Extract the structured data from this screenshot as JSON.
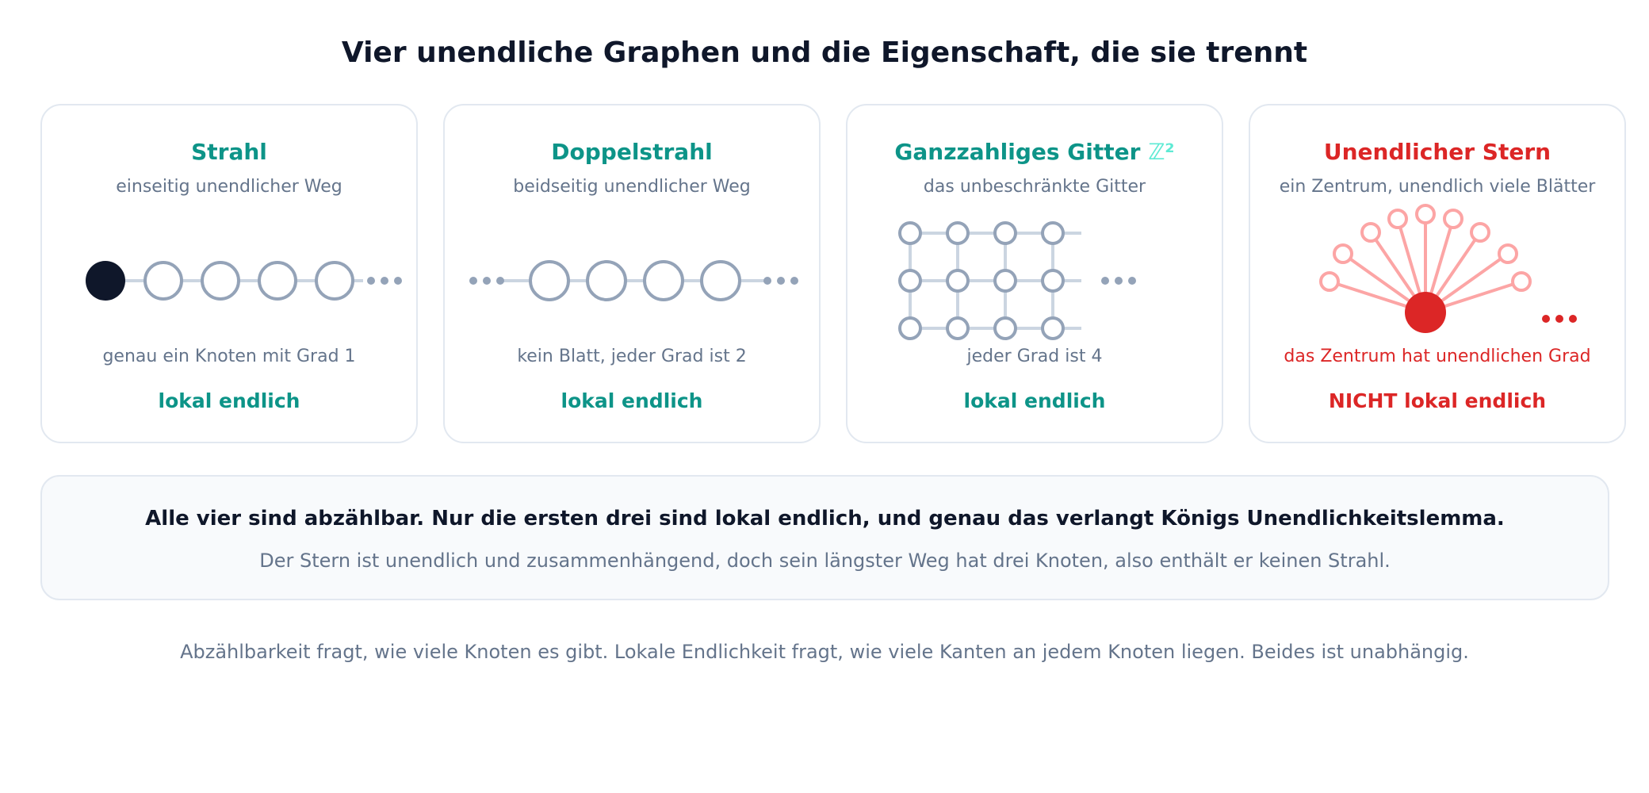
{
  "title": "Vier unendliche Graphen und die Eigenschaft, die sie trennt",
  "cards": [
    {
      "title": "Strahl",
      "subtitle": "einseitig unendlicher Weg",
      "property": "genau ein Knoten mit Grad 1",
      "verdict": "lokal endlich",
      "status": "locally-finite"
    },
    {
      "title": "Doppelstrahl",
      "subtitle": "beidseitig unendlicher Weg",
      "property": "kein Blatt, jeder Grad ist 2",
      "verdict": "lokal endlich",
      "status": "locally-finite"
    },
    {
      "title": "Ganzzahliges Gitter",
      "title_symbol": "ℤ²",
      "subtitle": "das unbeschränkte Gitter",
      "property": "jeder Grad ist 4",
      "verdict": "lokal endlich",
      "status": "locally-finite"
    },
    {
      "title": "Unendlicher Stern",
      "subtitle": "ein Zentrum, unendlich viele Blätter",
      "property": "das Zentrum hat unendlichen Grad",
      "verdict": "NICHT lokal endlich",
      "status": "not-locally-finite"
    }
  ],
  "summary": {
    "main": "Alle vier sind abzählbar. Nur die ersten drei sind lokal endlich, und genau das verlangt Königs Unendlichkeitslemma.",
    "sub": "Der Stern ist unendlich und zusammenhängend, doch sein längster Weg hat drei Knoten, also enthält er keinen Strahl."
  },
  "footer": "Abzählbarkeit fragt, wie viele Knoten es gibt. Lokale Endlichkeit fragt, wie viele Kanten an jedem Knoten liegen. Beides ist unabhängig.",
  "colors": {
    "teal": "#0d9488",
    "red": "#dc2626",
    "node_gray": "#94a3b8",
    "edge_gray": "#cbd5e1",
    "dark_node": "#0f172a",
    "star_leaf": "#fca5a5"
  }
}
